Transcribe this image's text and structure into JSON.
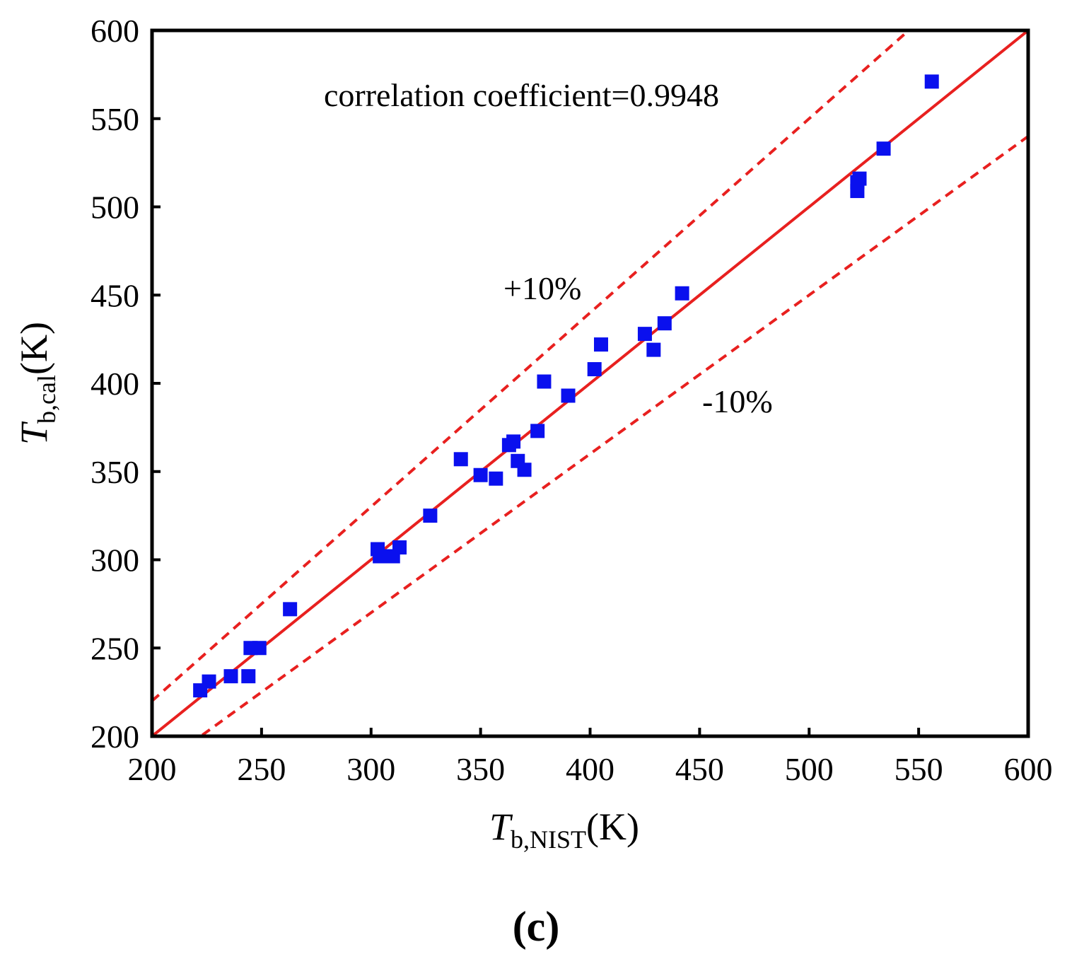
{
  "chart_data": {
    "type": "scatter",
    "panel_label": "(c)",
    "x_axis": {
      "symbol": "T",
      "subscript": "b,NIST",
      "unit": "(K)",
      "range": [
        200,
        600
      ],
      "ticks": [
        200,
        250,
        300,
        350,
        400,
        450,
        500,
        550,
        600
      ]
    },
    "y_axis": {
      "symbol": "T",
      "subscript": "b,cal",
      "unit": "(K)",
      "range": [
        200,
        600
      ],
      "ticks": [
        200,
        250,
        300,
        350,
        400,
        450,
        500,
        550,
        600
      ]
    },
    "grid": false,
    "annotations": {
      "correlation": "correlation coefficient=0.9948",
      "plus_label": "+10%",
      "minus_label": "-10%"
    },
    "reference_lines": [
      {
        "name": "y=x",
        "slope": 1.0,
        "style": "solid",
        "color": "#e8201f"
      },
      {
        "name": "+10%",
        "slope": 1.1,
        "style": "dashed",
        "color": "#e8201f"
      },
      {
        "name": "-10%",
        "slope": 0.9,
        "style": "dashed",
        "color": "#e8201f"
      }
    ],
    "marker_color": "#0a10ee",
    "points": [
      {
        "x": 222,
        "y": 226
      },
      {
        "x": 226,
        "y": 231
      },
      {
        "x": 236,
        "y": 234
      },
      {
        "x": 244,
        "y": 234
      },
      {
        "x": 245,
        "y": 250
      },
      {
        "x": 249,
        "y": 250
      },
      {
        "x": 263,
        "y": 272
      },
      {
        "x": 303,
        "y": 306
      },
      {
        "x": 304,
        "y": 302
      },
      {
        "x": 310,
        "y": 302
      },
      {
        "x": 313,
        "y": 307
      },
      {
        "x": 327,
        "y": 325
      },
      {
        "x": 341,
        "y": 357
      },
      {
        "x": 350,
        "y": 348
      },
      {
        "x": 357,
        "y": 346
      },
      {
        "x": 363,
        "y": 365
      },
      {
        "x": 365,
        "y": 367
      },
      {
        "x": 367,
        "y": 356
      },
      {
        "x": 370,
        "y": 351
      },
      {
        "x": 376,
        "y": 373
      },
      {
        "x": 379,
        "y": 401
      },
      {
        "x": 390,
        "y": 393
      },
      {
        "x": 402,
        "y": 408
      },
      {
        "x": 405,
        "y": 422
      },
      {
        "x": 425,
        "y": 428
      },
      {
        "x": 429,
        "y": 419
      },
      {
        "x": 434,
        "y": 434
      },
      {
        "x": 442,
        "y": 451
      },
      {
        "x": 522,
        "y": 509
      },
      {
        "x": 522,
        "y": 514
      },
      {
        "x": 523,
        "y": 516
      },
      {
        "x": 534,
        "y": 533
      },
      {
        "x": 556,
        "y": 571
      }
    ]
  }
}
